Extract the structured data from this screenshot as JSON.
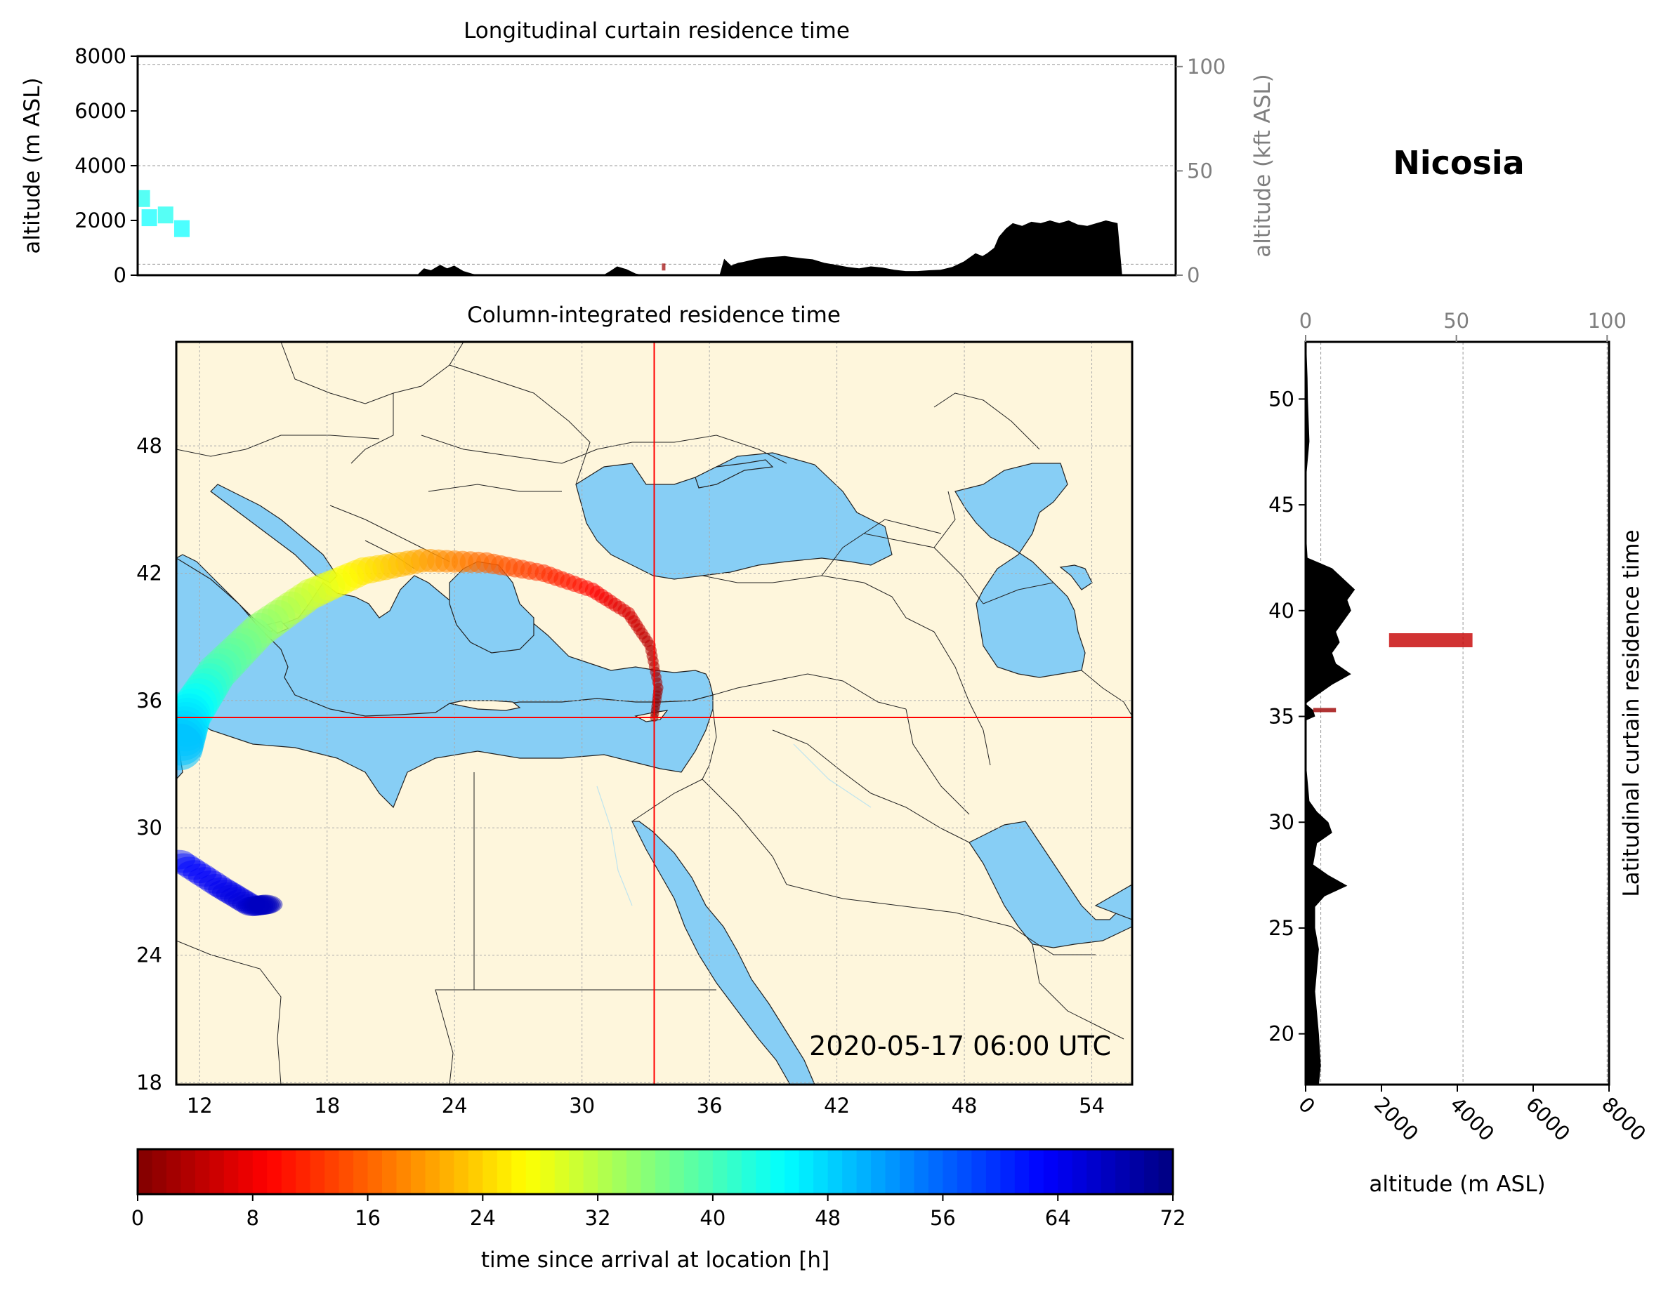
{
  "figure": {
    "station": "Nicosia",
    "timestamp": "2020-05-17 06:00 UTC"
  },
  "colors": {
    "land": "#FEF6DC",
    "sea": "#87CEF5",
    "orography": "#000000",
    "crosshair": "#ff0000"
  },
  "chart_data": [
    {
      "id": "longitudinal",
      "type": "area",
      "title": "Longitudinal curtain residence time",
      "ylabel": "altitude (m ASL)",
      "ylabel_right": "altitude (kft ASL)",
      "yticks": [
        "0",
        "2000",
        "4000",
        "6000",
        "8000"
      ],
      "yticks_right": [
        "0",
        "50",
        "100"
      ],
      "ylim": [
        0,
        8000
      ],
      "xlim": [
        11,
        55.6
      ],
      "orography": {
        "lon": [
          11,
          23,
          23.3,
          23.6,
          24,
          24.3,
          24.6,
          25,
          25.4,
          25.8,
          26.3,
          27,
          28,
          29,
          30,
          31,
          31.3,
          31.6,
          32,
          32.4,
          32.8,
          33.3,
          34,
          35,
          36,
          36.2,
          36.5,
          36.8,
          37,
          37.5,
          38,
          38.8,
          39.5,
          40,
          40.5,
          41,
          41.5,
          42,
          42.5,
          43,
          43.5,
          44,
          44.5,
          45,
          45.5,
          46,
          46.5,
          47,
          47.3,
          47.5,
          47.8,
          48,
          48.3,
          48.6,
          49,
          49.4,
          49.8,
          50.2,
          50.6,
          51,
          51.4,
          51.8,
          52.2,
          52.6,
          53.1,
          53.3,
          53.4,
          55.6
        ],
        "alt_m": [
          0,
          0,
          250,
          180,
          380,
          250,
          350,
          150,
          50,
          0,
          0,
          0,
          0,
          0,
          0,
          0,
          150,
          320,
          220,
          60,
          0,
          0,
          0,
          0,
          0,
          600,
          350,
          450,
          480,
          580,
          650,
          700,
          620,
          580,
          450,
          380,
          300,
          250,
          320,
          280,
          200,
          150,
          150,
          180,
          200,
          300,
          500,
          800,
          700,
          800,
          1000,
          1400,
          1700,
          1900,
          1800,
          1950,
          1900,
          2000,
          1900,
          2000,
          1850,
          1800,
          1900,
          2000,
          1900,
          0,
          0,
          0
        ]
      },
      "residence_points": [
        {
          "lon": 11.2,
          "alt_m": 2800,
          "hours": 44
        },
        {
          "lon": 11.5,
          "alt_m": 2100,
          "hours": 45
        },
        {
          "lon": 12.2,
          "alt_m": 2200,
          "hours": 44
        },
        {
          "lon": 12.9,
          "alt_m": 1700,
          "hours": 45
        },
        {
          "lon": 33.6,
          "alt_m": 300,
          "hours": 2
        }
      ]
    },
    {
      "id": "column",
      "type": "heatmap",
      "title": "Column-integrated residence time",
      "xticks": [
        "12",
        "18",
        "24",
        "30",
        "36",
        "42",
        "48",
        "54"
      ],
      "yticks": [
        "18",
        "24",
        "30",
        "36",
        "42",
        "48"
      ],
      "xlim": [
        10.9,
        55.9
      ],
      "ylim": [
        17.9,
        52.9
      ],
      "crosshair": {
        "lon": 33.4,
        "lat": 35.2
      },
      "grid": true,
      "plume": [
        {
          "lon": 33.4,
          "lat": 35.2,
          "hours": 0
        },
        {
          "lon": 33.6,
          "lat": 36.6,
          "hours": 2
        },
        {
          "lon": 33.2,
          "lat": 38.6,
          "hours": 4
        },
        {
          "lon": 32.2,
          "lat": 40.1,
          "hours": 6
        },
        {
          "lon": 30.5,
          "lat": 41.2,
          "hours": 9
        },
        {
          "lon": 28.2,
          "lat": 42.0,
          "hours": 12
        },
        {
          "lon": 25.5,
          "lat": 42.5,
          "hours": 16
        },
        {
          "lon": 22.5,
          "lat": 42.6,
          "hours": 20
        },
        {
          "lon": 19.7,
          "lat": 42.1,
          "hours": 25
        },
        {
          "lon": 17.2,
          "lat": 41.0,
          "hours": 30
        },
        {
          "lon": 14.8,
          "lat": 39.3,
          "hours": 35
        },
        {
          "lon": 12.8,
          "lat": 37.3,
          "hours": 40
        },
        {
          "lon": 11.5,
          "lat": 35.3,
          "hours": 46
        },
        {
          "lon": 11.0,
          "lat": 33.6,
          "hours": 50
        }
      ],
      "blue_patch": [
        {
          "lon": 11.0,
          "lat": 28.5,
          "hours": 62
        },
        {
          "lon": 13.0,
          "lat": 27.2,
          "hours": 64
        },
        {
          "lon": 14.5,
          "lat": 26.3,
          "hours": 66
        },
        {
          "lon": 15.2,
          "lat": 26.4,
          "hours": 68
        }
      ]
    },
    {
      "id": "latitudinal",
      "type": "area",
      "ylabel": "Latitudinal curtain residence time",
      "xlabel": "altitude (m ASL)",
      "xticks": [
        "0",
        "2000",
        "4000",
        "6000",
        "8000"
      ],
      "xticks_top": [
        "0",
        "50",
        "100"
      ],
      "yticks": [
        "20",
        "25",
        "30",
        "35",
        "40",
        "45",
        "50"
      ],
      "xlim": [
        0,
        8000
      ],
      "ylim": [
        17.6,
        52.7
      ],
      "orography": {
        "lat": [
          17.6,
          18.5,
          20,
          21,
          22,
          23,
          24,
          25,
          26,
          26.5,
          27,
          27.5,
          28,
          29,
          29.5,
          30,
          30.5,
          31,
          33,
          34.8,
          35.0,
          35.3,
          35.6,
          36,
          36.5,
          37,
          37.5,
          38,
          38.5,
          39,
          39.5,
          40,
          40.5,
          41,
          41.5,
          42,
          42.5,
          44,
          45,
          46,
          47,
          48,
          49,
          50,
          51,
          52,
          52.7
        ],
        "alt_m": [
          350,
          400,
          350,
          300,
          250,
          300,
          350,
          250,
          250,
          500,
          1100,
          600,
          200,
          300,
          700,
          600,
          300,
          100,
          0,
          0,
          250,
          200,
          0,
          300,
          700,
          1200,
          800,
          700,
          900,
          800,
          1000,
          1200,
          1100,
          1300,
          1000,
          700,
          50,
          0,
          0,
          0,
          50,
          100,
          80,
          60,
          50,
          30,
          20
        ]
      },
      "residence_points": [
        {
          "lat": 38.6,
          "alt_m": 3300,
          "hours": 5
        },
        {
          "lat": 35.3,
          "alt_m": 500,
          "hours": 2
        }
      ]
    }
  ],
  "colorbar": {
    "label": "time since arrival at location [h]",
    "ticks": [
      "0",
      "8",
      "16",
      "24",
      "32",
      "40",
      "48",
      "56",
      "64",
      "72"
    ],
    "min": 0,
    "max": 72,
    "colormap": "jet"
  },
  "map_label": "2020-05-17 06:00 UTC"
}
